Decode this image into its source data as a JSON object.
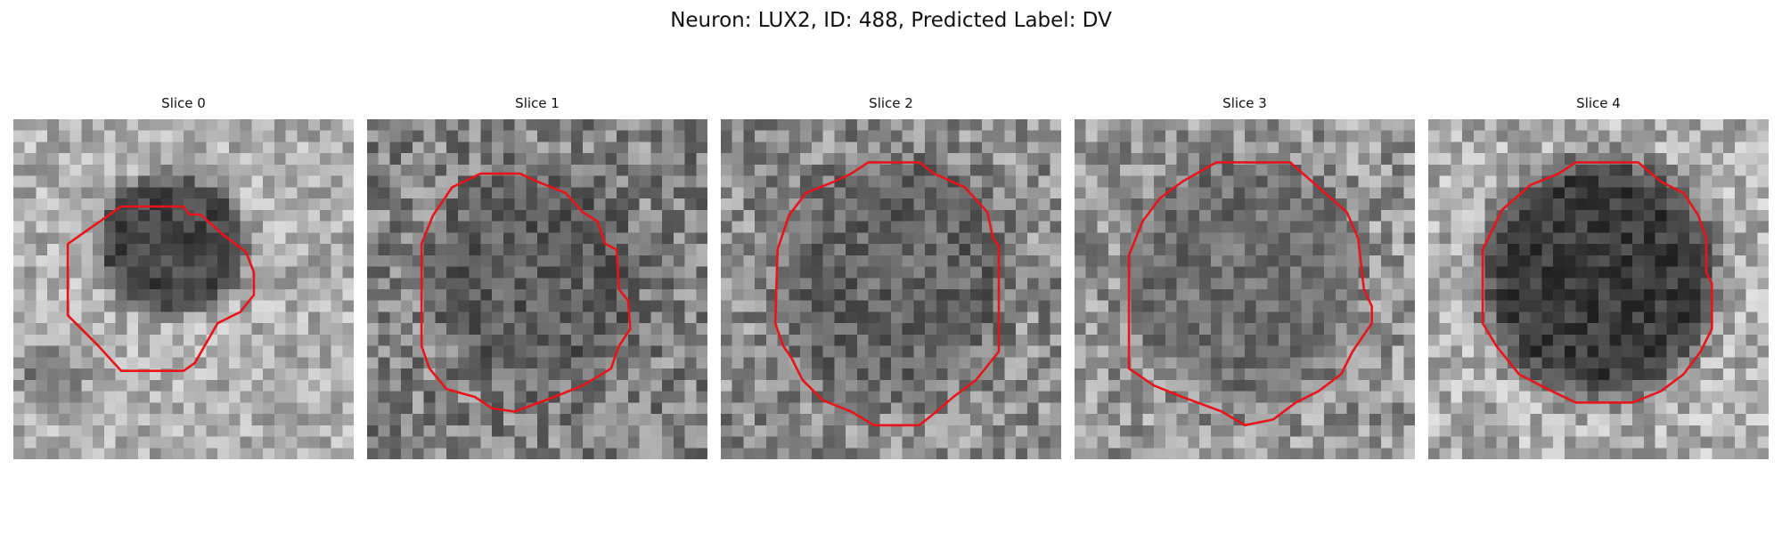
{
  "figure": {
    "suptitle": "Neuron: LUX2, ID: 488, Predicted Label: DV",
    "outline_color": "#e8141a",
    "colormap": "grayscale"
  },
  "panels": [
    {
      "title": "Slice 0"
    },
    {
      "title": "Slice 1"
    },
    {
      "title": "Slice 2"
    },
    {
      "title": "Slice 3"
    },
    {
      "title": "Slice 4"
    }
  ]
}
